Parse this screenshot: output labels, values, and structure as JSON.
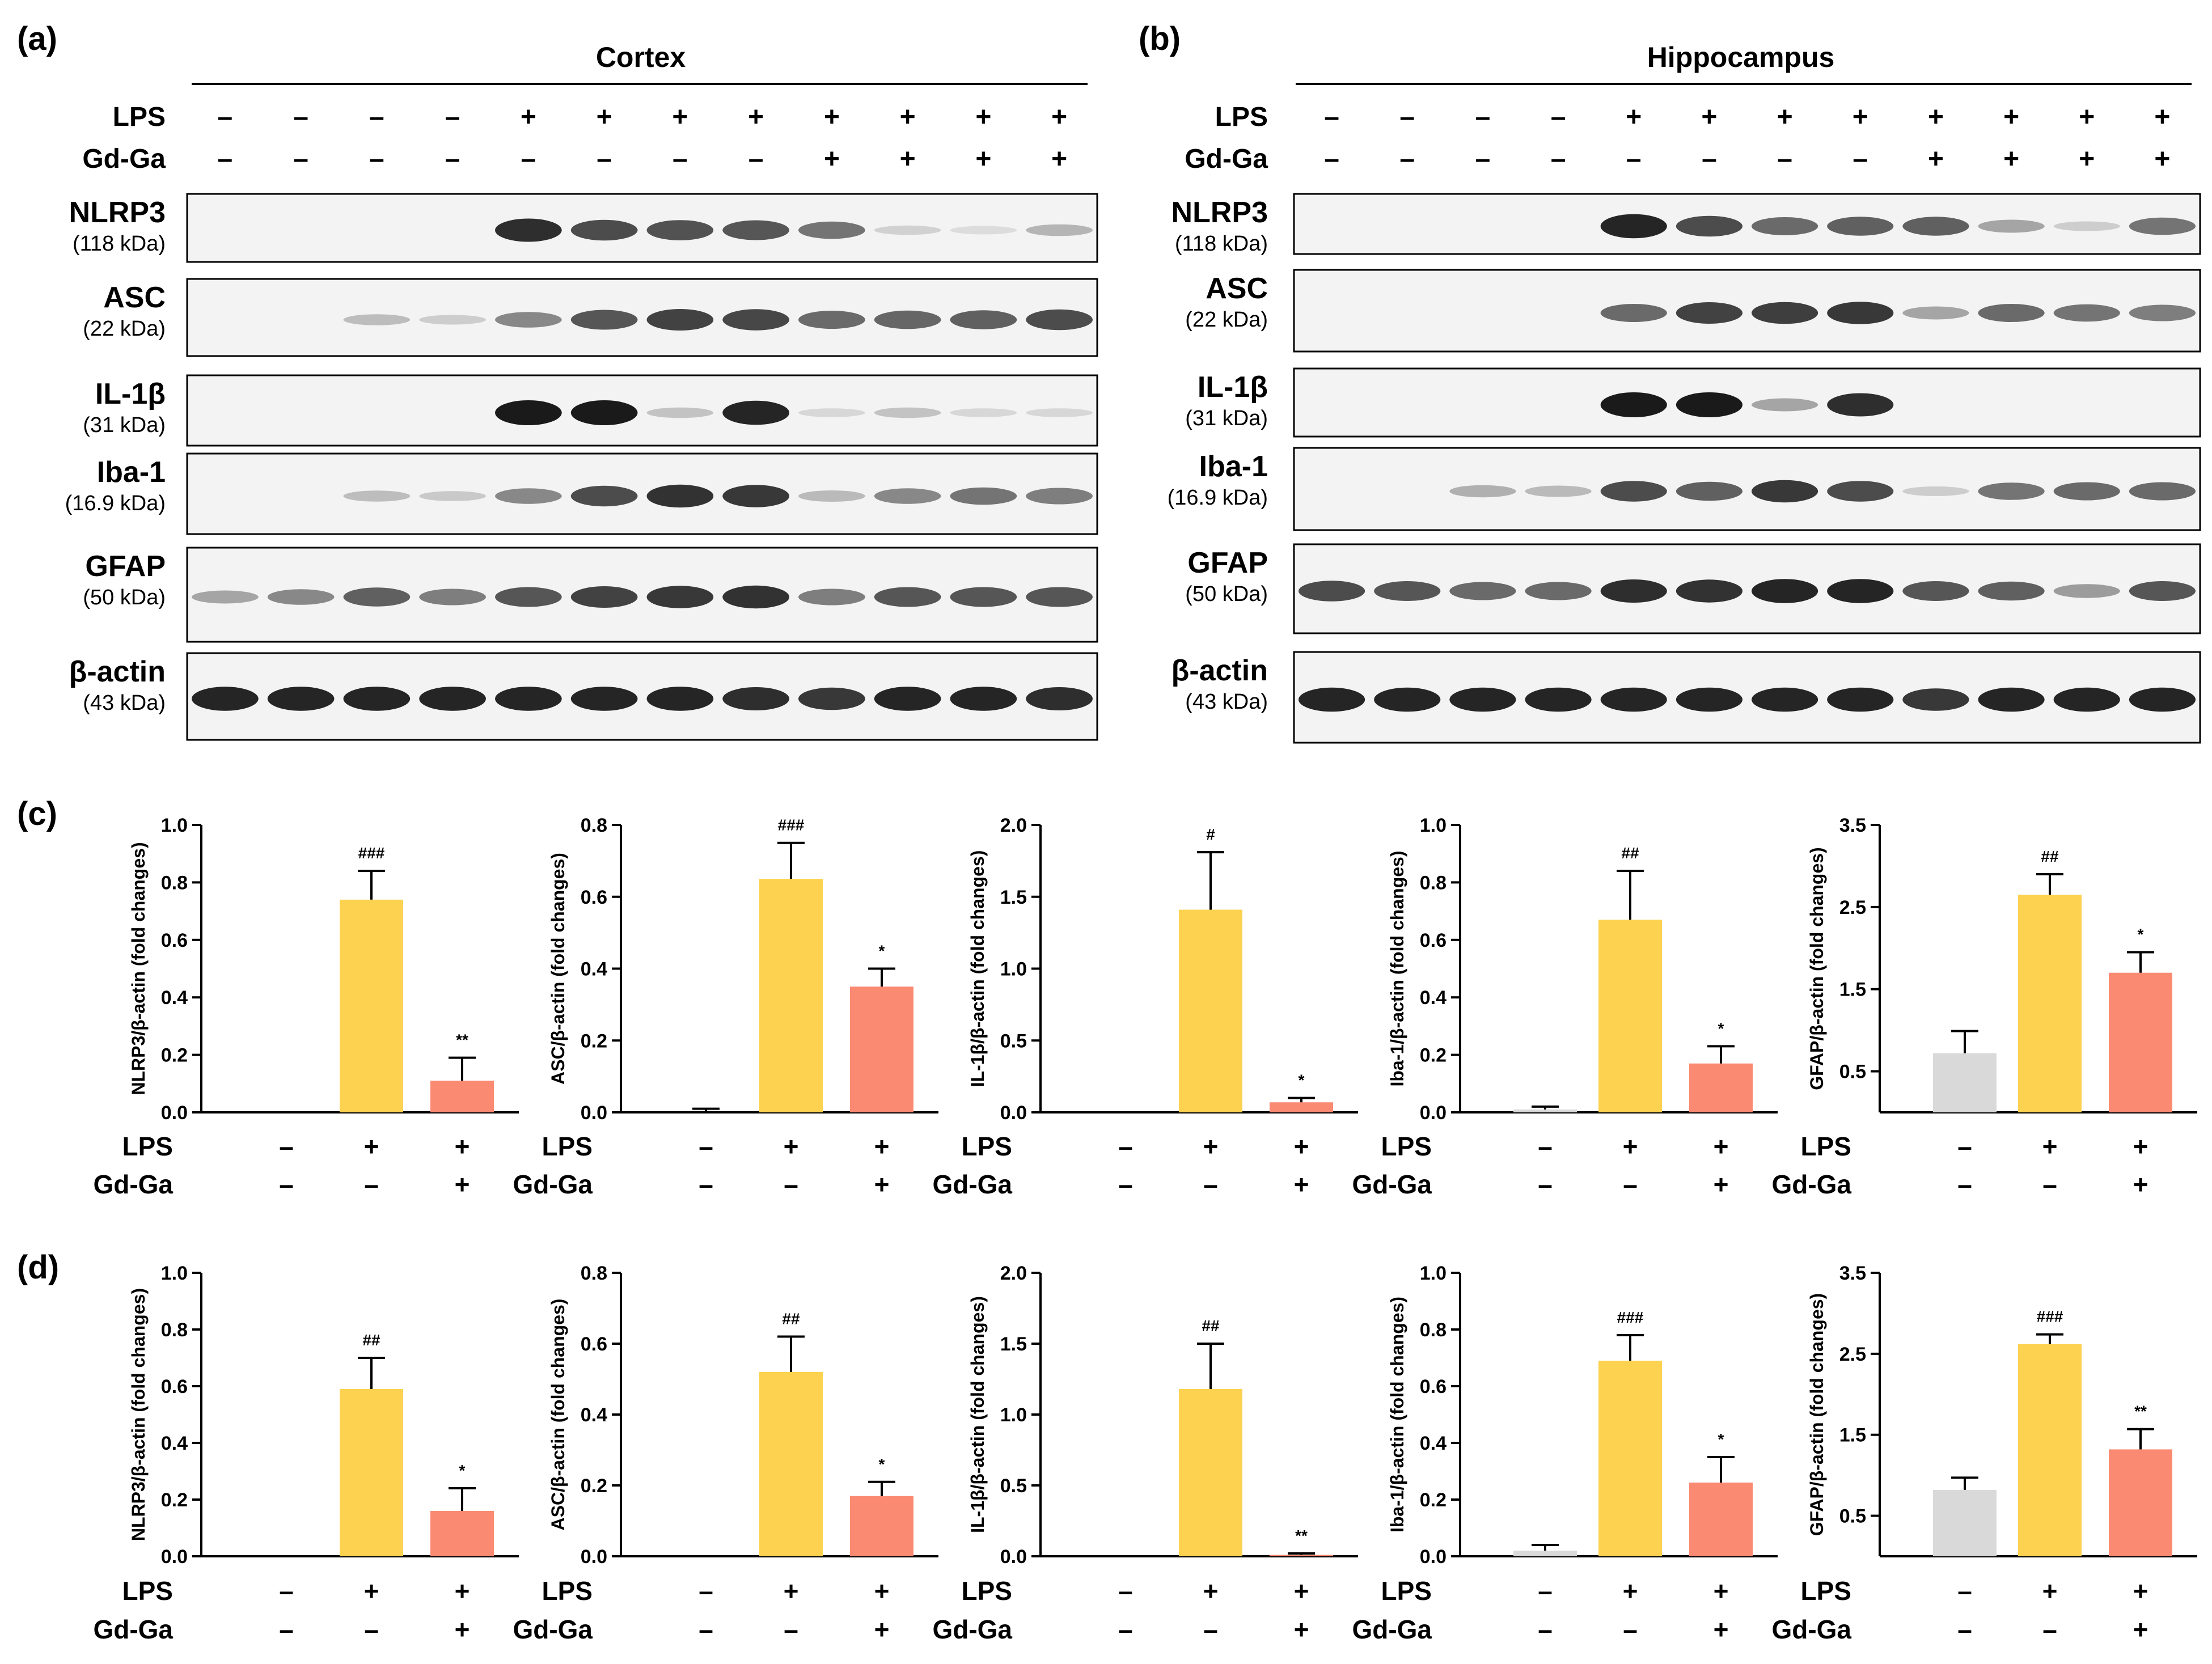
{
  "panels": {
    "a": {
      "letter": "(a)",
      "region": "Cortex"
    },
    "b": {
      "letter": "(b)",
      "region": "Hippocampus"
    },
    "c": {
      "letter": "(c)"
    },
    "d": {
      "letter": "(d)"
    }
  },
  "blot": {
    "conditions": [
      "LPS",
      "Gd-Ga"
    ],
    "lps_signs": [
      "–",
      "–",
      "–",
      "–",
      "+",
      "+",
      "+",
      "+",
      "+",
      "+",
      "+",
      "+"
    ],
    "gdga_signs": [
      "–",
      "–",
      "–",
      "–",
      "–",
      "–",
      "–",
      "–",
      "+",
      "+",
      "+",
      "+"
    ],
    "cortex_bands": [
      {
        "name": "NLRP3",
        "weight": "(118 kDa)",
        "intensity": [
          0,
          0,
          0,
          0,
          0.9,
          0.75,
          0.72,
          0.7,
          0.55,
          0.08,
          0.03,
          0.22
        ]
      },
      {
        "name": "ASC",
        "weight": "(22 kDa)",
        "intensity": [
          0,
          0,
          0.18,
          0.1,
          0.45,
          0.7,
          0.8,
          0.78,
          0.6,
          0.62,
          0.65,
          0.75
        ]
      },
      {
        "name": "IL-1β",
        "weight": "(31 kDa)",
        "intensity": [
          0,
          0,
          0,
          0,
          1,
          1,
          0.15,
          0.95,
          0.05,
          0.15,
          0.05,
          0.05
        ]
      },
      {
        "name": "Iba-1",
        "weight": "(16.9 kDa)",
        "intensity": [
          0,
          0,
          0.18,
          0.12,
          0.45,
          0.75,
          0.88,
          0.85,
          0.2,
          0.45,
          0.55,
          0.5
        ]
      },
      {
        "name": "GFAP",
        "weight": "(50 kDa)",
        "intensity": [
          0.3,
          0.45,
          0.65,
          0.5,
          0.7,
          0.8,
          0.85,
          0.88,
          0.5,
          0.7,
          0.7,
          0.7
        ]
      },
      {
        "name": "β-actin",
        "weight": "(43 kDa)",
        "intensity": [
          0.95,
          0.95,
          0.95,
          0.95,
          0.95,
          0.95,
          0.95,
          0.9,
          0.85,
          0.95,
          0.95,
          0.9
        ]
      }
    ],
    "hippocampus_bands": [
      {
        "name": "NLRP3",
        "weight": "(118 kDa)",
        "intensity": [
          0,
          0,
          0,
          0,
          0.95,
          0.75,
          0.6,
          0.65,
          0.65,
          0.3,
          0.1,
          0.55
        ]
      },
      {
        "name": "ASC",
        "weight": "(22 kDa)",
        "intensity": [
          0,
          0,
          0,
          0,
          0.6,
          0.8,
          0.82,
          0.85,
          0.3,
          0.6,
          0.55,
          0.5
        ]
      },
      {
        "name": "IL-1β",
        "weight": "(31 kDa)",
        "intensity": [
          0,
          0,
          0,
          0,
          1,
          1,
          0.3,
          0.9,
          0,
          0,
          0,
          0
        ]
      },
      {
        "name": "Iba-1",
        "weight": "(16.9 kDa)",
        "intensity": [
          0,
          0,
          0.25,
          0.2,
          0.75,
          0.65,
          0.85,
          0.75,
          0.1,
          0.55,
          0.6,
          0.6
        ]
      },
      {
        "name": "GFAP",
        "weight": "(50 kDa)",
        "intensity": [
          0.75,
          0.7,
          0.6,
          0.6,
          0.9,
          0.88,
          0.95,
          0.95,
          0.7,
          0.65,
          0.35,
          0.7
        ]
      },
      {
        "name": "β-actin",
        "weight": "(43 kDa)",
        "intensity": [
          0.95,
          0.95,
          0.95,
          0.95,
          0.95,
          0.95,
          0.95,
          0.95,
          0.85,
          0.95,
          0.95,
          0.95
        ]
      }
    ]
  },
  "bar_labels": {
    "lps": "LPS",
    "gdga": "Gd-Ga",
    "lps_signs": [
      "–",
      "+",
      "+"
    ],
    "gdga_signs": [
      "–",
      "–",
      "+"
    ]
  },
  "colors": {
    "control": "#d9d9d9",
    "lps": "#fcd250",
    "gdga": "#fa8a72",
    "band": "#1a1a1a"
  },
  "chart_data": [
    {
      "panel": "c",
      "type": "bar",
      "ylabel": "NLRP3/β-actin (fold changes)",
      "ylim": [
        0,
        1.0
      ],
      "yticks": [
        "0.0",
        "0.2",
        "0.4",
        "0.6",
        "0.8",
        "1.0"
      ],
      "categories": [
        "LPS–/Gd-Ga–",
        "LPS+/Gd-Ga–",
        "LPS+/Gd-Ga+"
      ],
      "values": [
        0.0,
        0.74,
        0.11
      ],
      "errors": [
        0,
        0.1,
        0.08
      ],
      "annotations": [
        "",
        "###",
        "**"
      ]
    },
    {
      "panel": "c",
      "type": "bar",
      "ylabel": "ASC/β-actin (fold changes)",
      "ylim": [
        0,
        0.8
      ],
      "yticks": [
        "0.0",
        "0.2",
        "0.4",
        "0.6",
        "0.8"
      ],
      "categories": [
        "LPS–/Gd-Ga–",
        "LPS+/Gd-Ga–",
        "LPS+/Gd-Ga+"
      ],
      "values": [
        0.0,
        0.65,
        0.35
      ],
      "errors": [
        0.01,
        0.1,
        0.05
      ],
      "annotations": [
        "",
        "###",
        "*"
      ]
    },
    {
      "panel": "c",
      "type": "bar",
      "ylabel": "IL-1β/β-actin (fold changes)",
      "ylim": [
        0,
        2.0
      ],
      "yticks": [
        "0.0",
        "0.5",
        "1.0",
        "1.5",
        "2.0"
      ],
      "categories": [
        "LPS–/Gd-Ga–",
        "LPS+/Gd-Ga–",
        "LPS+/Gd-Ga+"
      ],
      "values": [
        0.0,
        1.41,
        0.07
      ],
      "errors": [
        0,
        0.4,
        0.03
      ],
      "annotations": [
        "",
        "#",
        "*"
      ]
    },
    {
      "panel": "c",
      "type": "bar",
      "ylabel": "Iba-1/β-actin (fold changes)",
      "ylim": [
        0,
        1.0
      ],
      "yticks": [
        "0.0",
        "0.2",
        "0.4",
        "0.6",
        "0.8",
        "1.0"
      ],
      "categories": [
        "LPS–/Gd-Ga–",
        "LPS+/Gd-Ga–",
        "LPS+/Gd-Ga+"
      ],
      "values": [
        0.01,
        0.67,
        0.17
      ],
      "errors": [
        0.01,
        0.17,
        0.06
      ],
      "annotations": [
        "",
        "##",
        "*"
      ]
    },
    {
      "panel": "c",
      "type": "bar",
      "ylabel": "GFAP/β-actin (fold changes)",
      "ylim": [
        0,
        3.5
      ],
      "yticks": [
        "0.5",
        "1.5",
        "2.5",
        "3.5"
      ],
      "categories": [
        "LPS–/Gd-Ga–",
        "LPS+/Gd-Ga–",
        "LPS+/Gd-Ga+"
      ],
      "values": [
        0.72,
        2.65,
        1.7
      ],
      "errors": [
        0.27,
        0.25,
        0.25
      ],
      "annotations": [
        "",
        "##",
        "*"
      ]
    },
    {
      "panel": "d",
      "type": "bar",
      "ylabel": "NLRP3/β-actin (fold changes)",
      "ylim": [
        0,
        1.0
      ],
      "yticks": [
        "0.0",
        "0.2",
        "0.4",
        "0.6",
        "0.8",
        "1.0"
      ],
      "categories": [
        "LPS–/Gd-Ga–",
        "LPS+/Gd-Ga–",
        "LPS+/Gd-Ga+"
      ],
      "values": [
        0.0,
        0.59,
        0.16
      ],
      "errors": [
        0,
        0.11,
        0.08
      ],
      "annotations": [
        "",
        "##",
        "*"
      ]
    },
    {
      "panel": "d",
      "type": "bar",
      "ylabel": "ASC/β-actin (fold changes)",
      "ylim": [
        0,
        0.8
      ],
      "yticks": [
        "0.0",
        "0.2",
        "0.4",
        "0.6",
        "0.8"
      ],
      "categories": [
        "LPS–/Gd-Ga–",
        "LPS+/Gd-Ga–",
        "LPS+/Gd-Ga+"
      ],
      "values": [
        0.0,
        0.52,
        0.17
      ],
      "errors": [
        0,
        0.1,
        0.04
      ],
      "annotations": [
        "",
        "##",
        "*"
      ]
    },
    {
      "panel": "d",
      "type": "bar",
      "ylabel": "IL-1β/β-actin (fold changes)",
      "ylim": [
        0,
        2.0
      ],
      "yticks": [
        "0.0",
        "0.5",
        "1.0",
        "1.5",
        "2.0"
      ],
      "categories": [
        "LPS–/Gd-Ga–",
        "LPS+/Gd-Ga–",
        "LPS+/Gd-Ga+"
      ],
      "values": [
        0.0,
        1.18,
        0.01
      ],
      "errors": [
        0,
        0.32,
        0.01
      ],
      "annotations": [
        "",
        "##",
        "**"
      ]
    },
    {
      "panel": "d",
      "type": "bar",
      "ylabel": "Iba-1/β-actin (fold changes)",
      "ylim": [
        0,
        1.0
      ],
      "yticks": [
        "0.0",
        "0.2",
        "0.4",
        "0.6",
        "0.8",
        "1.0"
      ],
      "categories": [
        "LPS–/Gd-Ga–",
        "LPS+/Gd-Ga–",
        "LPS+/Gd-Ga+"
      ],
      "values": [
        0.02,
        0.69,
        0.26
      ],
      "errors": [
        0.02,
        0.09,
        0.09
      ],
      "annotations": [
        "",
        "###",
        "*"
      ]
    },
    {
      "panel": "d",
      "type": "bar",
      "ylabel": "GFAP/β-actin (fold changes)",
      "ylim": [
        0,
        3.5
      ],
      "yticks": [
        "0.5",
        "1.5",
        "2.5",
        "3.5"
      ],
      "categories": [
        "LPS–/Gd-Ga–",
        "LPS+/Gd-Ga–",
        "LPS+/Gd-Ga+"
      ],
      "values": [
        0.82,
        2.62,
        1.32
      ],
      "errors": [
        0.15,
        0.12,
        0.25
      ],
      "annotations": [
        "",
        "###",
        "**"
      ]
    }
  ]
}
